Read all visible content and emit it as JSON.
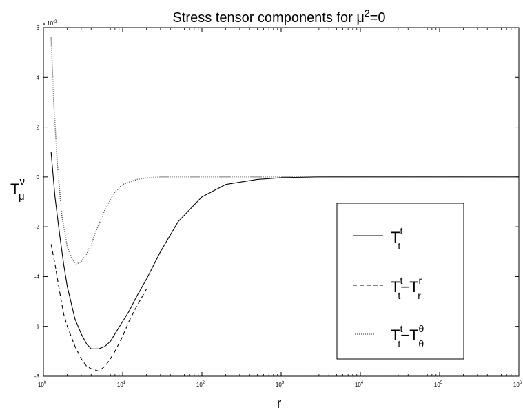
{
  "chart_data": {
    "type": "line",
    "title": {
      "text": "Stress tensor components for ",
      "mu": "μ",
      "sup": "2",
      "rest": "=0"
    },
    "xlabel": "r",
    "ylabel": {
      "base": "T",
      "sup": "ν",
      "sub": "μ"
    },
    "x_scale": "log",
    "xlim": [
      1,
      1000000
    ],
    "ylim": [
      -0.008,
      0.006
    ],
    "exponent_label": "x 10^-3",
    "exponent_parts": {
      "base": "x 10",
      "sup": "-3"
    },
    "x_ticks": [
      {
        "value": 1,
        "base": "10",
        "exp": "0"
      },
      {
        "value": 10,
        "base": "10",
        "exp": "1"
      },
      {
        "value": 100,
        "base": "10",
        "exp": "2"
      },
      {
        "value": 1000,
        "base": "10",
        "exp": "3"
      },
      {
        "value": 10000,
        "base": "10",
        "exp": "4"
      },
      {
        "value": 100000,
        "base": "10",
        "exp": "5"
      },
      {
        "value": 1000000,
        "base": "10",
        "exp": "6"
      }
    ],
    "y_ticks": [
      {
        "value": -0.008,
        "label": "-8"
      },
      {
        "value": -0.006,
        "label": "-6"
      },
      {
        "value": -0.004,
        "label": "-4"
      },
      {
        "value": -0.002,
        "label": "-2"
      },
      {
        "value": 0,
        "label": "0"
      },
      {
        "value": 0.002,
        "label": "2"
      },
      {
        "value": 0.004,
        "label": "4"
      },
      {
        "value": 0.006,
        "label": "6"
      }
    ],
    "grid": false,
    "legend_position": "right",
    "series": [
      {
        "name": "T_t^t",
        "style": "solid",
        "x": [
          1.25,
          1.4,
          1.6,
          1.8,
          2,
          2.5,
          3,
          3.5,
          4,
          5,
          6,
          7,
          8,
          10,
          12,
          15,
          20,
          30,
          50,
          100,
          200,
          500,
          1000,
          3000,
          10000,
          100000,
          1000000
        ],
        "y": [
          0.001,
          -0.0008,
          -0.0023,
          -0.0035,
          -0.0044,
          -0.0057,
          -0.0063,
          -0.0067,
          -0.0069,
          -0.0069,
          -0.0068,
          -0.0066,
          -0.0063,
          -0.0058,
          -0.0054,
          -0.0048,
          -0.0041,
          -0.003,
          -0.0018,
          -0.0008,
          -0.0003,
          -0.0001,
          -3e-05,
          0,
          0,
          0,
          0
        ]
      },
      {
        "name": "T_t^t - T_r^r",
        "style": "dashed",
        "x": [
          1.25,
          1.4,
          1.6,
          1.8,
          2,
          2.5,
          3,
          3.5,
          4,
          5,
          6,
          7,
          8,
          10,
          12,
          15,
          20
        ],
        "y": [
          -0.0027,
          -0.0035,
          -0.0046,
          -0.0055,
          -0.006,
          -0.0068,
          -0.0073,
          -0.0076,
          -0.0077,
          -0.0078,
          -0.0076,
          -0.0073,
          -0.007,
          -0.0064,
          -0.0058,
          -0.0052,
          -0.0045
        ]
      },
      {
        "name": "T_t^t - T_θ^θ",
        "style": "dotted",
        "x": [
          1.25,
          1.35,
          1.5,
          1.7,
          2,
          2.3,
          2.6,
          3,
          3.5,
          4,
          5,
          6,
          8,
          10,
          15,
          20,
          30,
          50,
          100,
          1000,
          1000000
        ],
        "y": [
          0.0056,
          0.003,
          0.0005,
          -0.0015,
          -0.0028,
          -0.0033,
          -0.0035,
          -0.0034,
          -0.0031,
          -0.0027,
          -0.0019,
          -0.0013,
          -0.0006,
          -0.0003,
          -0.0001,
          -4e-05,
          0,
          0,
          0,
          0,
          0
        ]
      }
    ],
    "legend": [
      {
        "base": "T",
        "sup": "t",
        "sub": "t",
        "rest": ""
      },
      {
        "base": "T",
        "sup": "t",
        "sub": "t",
        "minus": "−",
        "base2": "T",
        "sup2": "r",
        "sub2": "r"
      },
      {
        "base": "T",
        "sup": "t",
        "sub": "t",
        "minus": "−",
        "base2": "T",
        "sup2": "θ",
        "sub2": "θ"
      }
    ]
  }
}
